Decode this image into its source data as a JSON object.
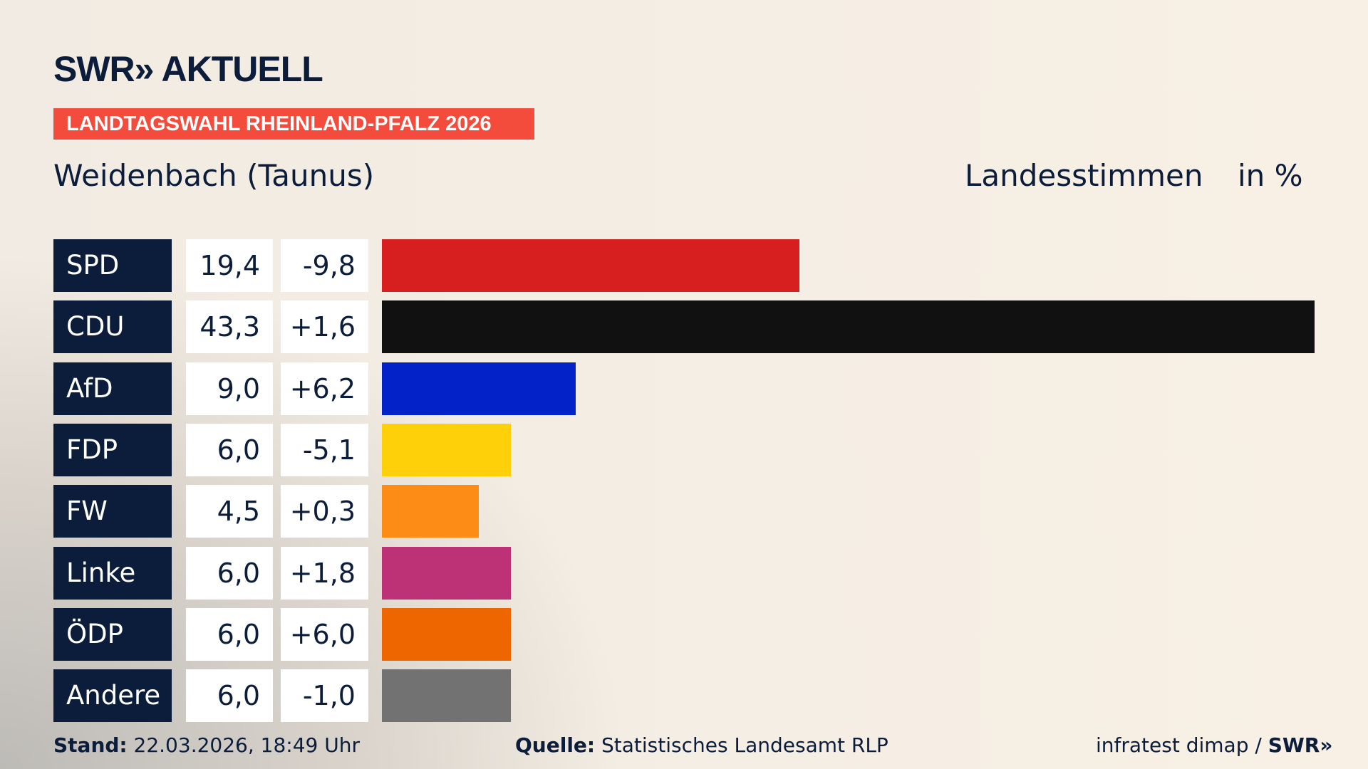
{
  "header": {
    "logo": "SWR» AKTUELL",
    "banner": "LANDTAGSWAHL RHEINLAND-PFALZ 2026",
    "location": "Weidenbach (Taunus)",
    "vote_type": "Landesstimmen",
    "unit": "in %"
  },
  "chart_data": {
    "type": "bar",
    "orientation": "horizontal",
    "xlim": [
      0,
      43.3
    ],
    "categories": [
      "SPD",
      "CDU",
      "AfD",
      "FDP",
      "FW",
      "Linke",
      "ÖDP",
      "Andere"
    ],
    "values": [
      19.4,
      43.3,
      9.0,
      6.0,
      4.5,
      6.0,
      6.0,
      6.0
    ],
    "value_labels": [
      "19,4",
      "43,3",
      "9,0",
      "6,0",
      "4,5",
      "6,0",
      "6,0",
      "6,0"
    ],
    "diff_labels": [
      "-9,8",
      "+1,6",
      "+6,2",
      "-5,1",
      "+0,3",
      "+1,8",
      "+6,0",
      "-1,0"
    ],
    "colors": [
      "#d81f20",
      "#111111",
      "#0322c8",
      "#fdd00a",
      "#fd8c17",
      "#bd3176",
      "#ee6600",
      "#727272"
    ]
  },
  "footer": {
    "stand_label": "Stand:",
    "stand_value": "22.03.2026, 18:49 Uhr",
    "source_label": "Quelle:",
    "source_value": "Statistisches Landesamt RLP",
    "credit": "infratest dimap / ",
    "credit_logo": "SWR»"
  }
}
